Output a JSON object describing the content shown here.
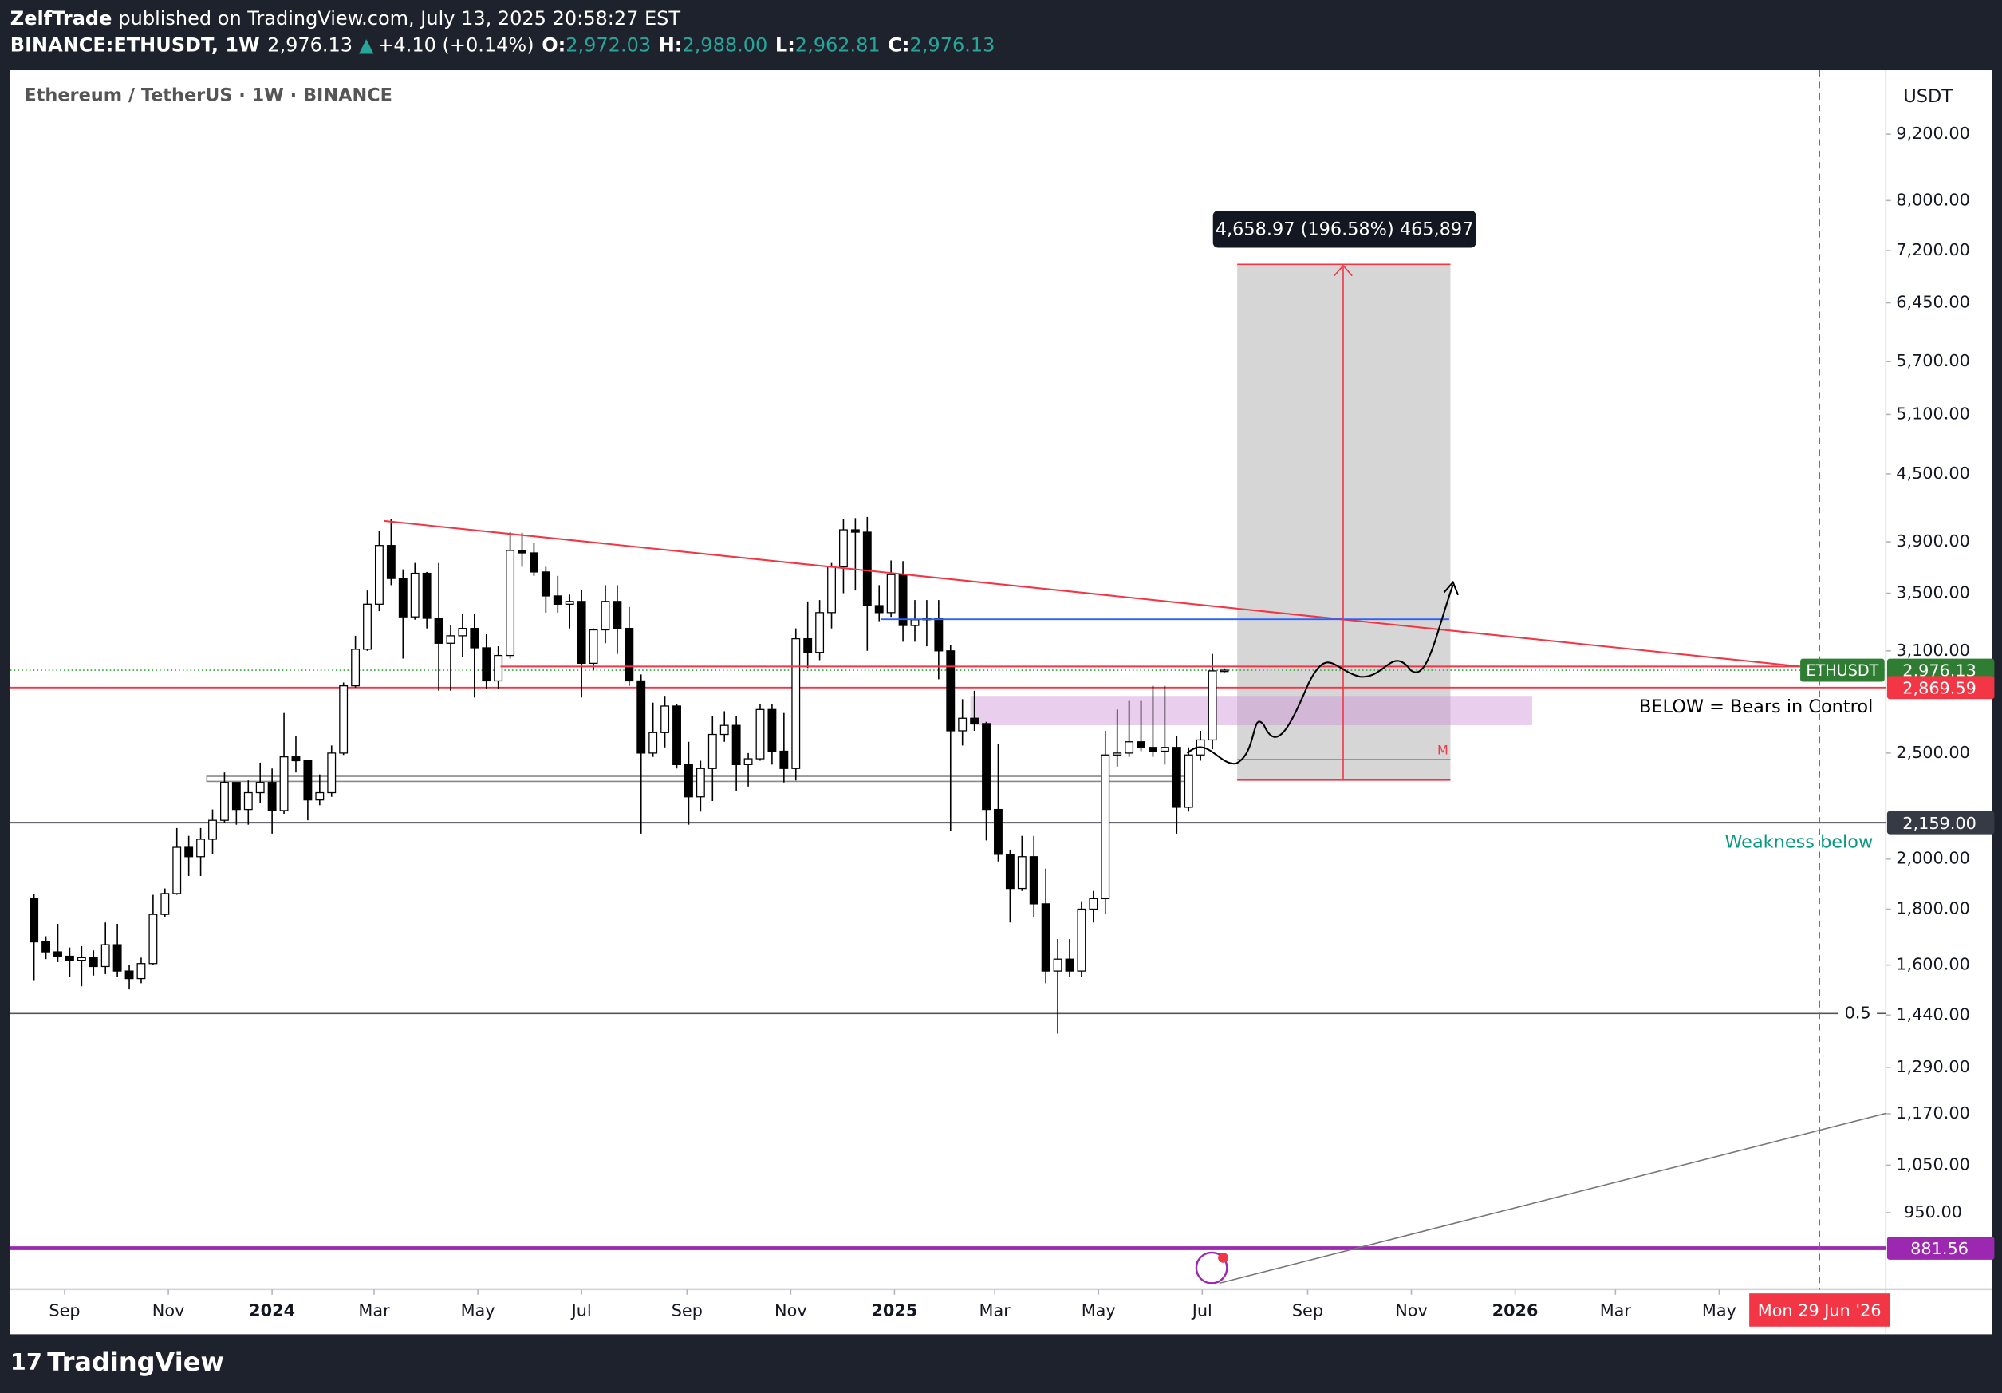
{
  "header": {
    "author": "ZelfTrade",
    "published": "published on TradingView.com, July 13, 2025 20:58:27 EST",
    "symbol": "BINANCE:ETHUSDT, 1W",
    "last": "2,976.13",
    "arrow": "▲",
    "change": "+4.10 (+0.14%)",
    "o_label": "O:",
    "o": "2,972.03",
    "h_label": "H:",
    "h": "2,988.00",
    "l_label": "L:",
    "l": "2,962.81",
    "c_label": "C:",
    "c": "2,976.13"
  },
  "footer": "TradingView",
  "chart_data": {
    "type": "candlestick",
    "title": "Ethereum / TetherUS · 1W · BINANCE",
    "currency": "USDT",
    "log_scale": true,
    "colors": {
      "up": "#ffffff",
      "down": "#000000",
      "border": "#000000"
    },
    "x": [
      "2023-08-14",
      "2023-08-21",
      "2023-08-28",
      "2023-09-04",
      "2023-09-11",
      "2023-09-18",
      "2023-09-25",
      "2023-10-02",
      "2023-10-09",
      "2023-10-16",
      "2023-10-23",
      "2023-10-30",
      "2023-11-06",
      "2023-11-13",
      "2023-11-20",
      "2023-11-27",
      "2023-12-04",
      "2023-12-11",
      "2023-12-18",
      "2023-12-25",
      "2024-01-01",
      "2024-01-08",
      "2024-01-15",
      "2024-01-22",
      "2024-01-29",
      "2024-02-05",
      "2024-02-12",
      "2024-02-19",
      "2024-02-26",
      "2024-03-04",
      "2024-03-11",
      "2024-03-18",
      "2024-03-25",
      "2024-04-01",
      "2024-04-08",
      "2024-04-15",
      "2024-04-22",
      "2024-04-29",
      "2024-05-06",
      "2024-05-13",
      "2024-05-20",
      "2024-05-27",
      "2024-06-03",
      "2024-06-10",
      "2024-06-17",
      "2024-06-24",
      "2024-07-01",
      "2024-07-08",
      "2024-07-15",
      "2024-07-22",
      "2024-07-29",
      "2024-08-05",
      "2024-08-12",
      "2024-08-19",
      "2024-08-26",
      "2024-09-02",
      "2024-09-09",
      "2024-09-16",
      "2024-09-23",
      "2024-09-30",
      "2024-10-07",
      "2024-10-14",
      "2024-10-21",
      "2024-10-28",
      "2024-11-04",
      "2024-11-11",
      "2024-11-18",
      "2024-11-25",
      "2024-12-02",
      "2024-12-09",
      "2024-12-16",
      "2024-12-23",
      "2024-12-30",
      "2025-01-06",
      "2025-01-13",
      "2025-01-20",
      "2025-01-27",
      "2025-02-03",
      "2025-02-10",
      "2025-02-17",
      "2025-02-24",
      "2025-03-03",
      "2025-03-10",
      "2025-03-17",
      "2025-03-24",
      "2025-03-31",
      "2025-04-07",
      "2025-04-14",
      "2025-04-21",
      "2025-04-28",
      "2025-05-05",
      "2025-05-12",
      "2025-05-19",
      "2025-05-26",
      "2025-06-02",
      "2025-06-09",
      "2025-06-16",
      "2025-06-23",
      "2025-06-30",
      "2025-07-07",
      "2025-07-14"
    ],
    "open": [
      1840,
      1680,
      1645,
      1630,
      1616,
      1625,
      1595,
      1670,
      1580,
      1555,
      1605,
      1780,
      1860,
      2050,
      2010,
      2085,
      2170,
      2350,
      2220,
      2300,
      2350,
      2215,
      2480,
      2460,
      2265,
      2300,
      2500,
      2880,
      3110,
      3420,
      3870,
      3610,
      3330,
      3650,
      3320,
      3150,
      3200,
      3250,
      3120,
      2910,
      3070,
      3830,
      3810,
      3660,
      3480,
      3420,
      3440,
      3020,
      3240,
      3440,
      3250,
      2910,
      2500,
      2610,
      2760,
      2440,
      2280,
      2420,
      2600,
      2650,
      2440,
      2470,
      2740,
      2510,
      2420,
      3180,
      3090,
      3360,
      3700,
      4000,
      3980,
      3410,
      3360,
      3640,
      3270,
      3310,
      3320,
      3100,
      2620,
      2690,
      2660,
      2220,
      2020,
      1880,
      2010,
      1820,
      1580,
      1620,
      1580,
      1800,
      1840,
      2490,
      2500,
      2560,
      2530,
      2510,
      2530,
      2230,
      2490,
      2570,
      2972.03
    ],
    "high": [
      1860,
      1700,
      1745,
      1660,
      1665,
      1650,
      1750,
      1745,
      1600,
      1625,
      1855,
      1880,
      2135,
      2100,
      2135,
      2220,
      2400,
      2350,
      2360,
      2450,
      2420,
      2720,
      2590,
      2460,
      2390,
      2540,
      2900,
      3200,
      3520,
      3990,
      4090,
      3680,
      3730,
      3660,
      3730,
      3270,
      3350,
      3350,
      3210,
      3130,
      3980,
      3975,
      3890,
      3700,
      3630,
      3490,
      3525,
      3250,
      3560,
      3560,
      3400,
      2950,
      2780,
      2820,
      2770,
      2560,
      2460,
      2700,
      2730,
      2700,
      2500,
      2770,
      2770,
      2720,
      3250,
      3440,
      3450,
      3730,
      4090,
      4100,
      4110,
      3560,
      3750,
      3745,
      3450,
      3450,
      3450,
      3140,
      2800,
      2850,
      2670,
      2550,
      2040,
      2100,
      2100,
      1960,
      1690,
      1690,
      1830,
      1870,
      2620,
      2740,
      2790,
      2790,
      2880,
      2880,
      2590,
      2530,
      2620,
      3080,
      2988
    ],
    "low": [
      1550,
      1620,
      1610,
      1560,
      1530,
      1565,
      1570,
      1560,
      1520,
      1540,
      1600,
      1770,
      1855,
      1930,
      1930,
      2020,
      2160,
      2150,
      2150,
      2250,
      2110,
      2200,
      2400,
      2170,
      2240,
      2280,
      2490,
      2870,
      3100,
      3370,
      3560,
      3050,
      3310,
      3250,
      2850,
      2850,
      3060,
      2810,
      2860,
      2860,
      3050,
      3700,
      3630,
      3360,
      3360,
      3250,
      2810,
      2975,
      3150,
      3080,
      2880,
      2110,
      2480,
      2530,
      2420,
      2150,
      2210,
      2260,
      2560,
      2310,
      2330,
      2460,
      2440,
      2350,
      2360,
      2990,
      3040,
      3250,
      3500,
      3520,
      3100,
      3300,
      3330,
      3160,
      3160,
      3130,
      2920,
      2120,
      2540,
      2620,
      2080,
      1990,
      1750,
      1870,
      1770,
      1540,
      1385,
      1560,
      1560,
      1750,
      1780,
      2430,
      2480,
      2510,
      2480,
      2440,
      2110,
      2210,
      2460,
      2520,
      2962.81
    ],
    "close": [
      1680,
      1645,
      1630,
      1616,
      1625,
      1595,
      1670,
      1580,
      1555,
      1605,
      1780,
      1860,
      2050,
      2010,
      2085,
      2170,
      2350,
      2220,
      2300,
      2350,
      2215,
      2480,
      2460,
      2265,
      2300,
      2500,
      2880,
      3110,
      3420,
      3870,
      3610,
      3330,
      3650,
      3320,
      3150,
      3200,
      3250,
      3120,
      2910,
      3070,
      3830,
      3810,
      3660,
      3480,
      3420,
      3440,
      3020,
      3240,
      3440,
      3250,
      2910,
      2500,
      2610,
      2760,
      2440,
      2280,
      2420,
      2600,
      2650,
      2440,
      2470,
      2740,
      2510,
      2420,
      3180,
      3090,
      3360,
      3700,
      4000,
      3980,
      3410,
      3360,
      3640,
      3270,
      3310,
      3320,
      3100,
      2620,
      2690,
      2660,
      2220,
      2020,
      1880,
      2010,
      1820,
      1580,
      1620,
      1580,
      1800,
      1840,
      2490,
      2500,
      2560,
      2530,
      2510,
      2530,
      2230,
      2490,
      2570,
      2972.03,
      2976.13
    ],
    "xlim": [
      "2023-07-31",
      "2026-08-07"
    ],
    "xticks": [
      {
        "value": "2023-09",
        "label": "Sep"
      },
      {
        "value": "2023-11",
        "label": "Nov"
      },
      {
        "value": "2024-01",
        "label": "2024"
      },
      {
        "value": "2024-03",
        "label": "Mar"
      },
      {
        "value": "2024-05",
        "label": "May"
      },
      {
        "value": "2024-07",
        "label": "Jul"
      },
      {
        "value": "2024-09",
        "label": "Sep"
      },
      {
        "value": "2024-11",
        "label": "Nov"
      },
      {
        "value": "2025-01",
        "label": "2025"
      },
      {
        "value": "2025-03",
        "label": "Mar"
      },
      {
        "value": "2025-05",
        "label": "May"
      },
      {
        "value": "2025-07",
        "label": "Jul"
      },
      {
        "value": "2025-09",
        "label": "Sep"
      },
      {
        "value": "2025-11",
        "label": "Nov"
      },
      {
        "value": "2026-01",
        "label": "2026"
      },
      {
        "value": "2026-03",
        "label": "Mar"
      },
      {
        "value": "2026-05",
        "label": "May"
      }
    ],
    "ylim": [
      808,
      10525
    ],
    "yticks": [
      {
        "value": 9200,
        "label": "9,200.00"
      },
      {
        "value": 8000,
        "label": "8,000.00"
      },
      {
        "value": 7200,
        "label": "7,200.00"
      },
      {
        "value": 6450,
        "label": "6,450.00"
      },
      {
        "value": 5700,
        "label": "5,700.00"
      },
      {
        "value": 5100,
        "label": "5,100.00"
      },
      {
        "value": 4500,
        "label": "4,500.00"
      },
      {
        "value": 3900,
        "label": "3,900.00"
      },
      {
        "value": 3500,
        "label": "3,500.00"
      },
      {
        "value": 3100,
        "label": "3,100.00"
      },
      {
        "value": 2500,
        "label": "2,500.00"
      },
      {
        "value": 2000,
        "label": "2,000.00"
      },
      {
        "value": 1800,
        "label": "1,800.00"
      },
      {
        "value": 1600,
        "label": "1,600.00"
      },
      {
        "value": 1440,
        "label": "1,440.00"
      },
      {
        "value": 1290,
        "label": "1,290.00"
      },
      {
        "value": 1170,
        "label": "1,170.00"
      },
      {
        "value": 1050,
        "label": "1,050.00"
      },
      {
        "value": 950,
        "label": "950.00"
      }
    ],
    "levels": [
      {
        "label": "2,976.13",
        "value": 2976.13,
        "color": "#2e7d32",
        "tag": "ETHUSDT",
        "style": "dotted"
      },
      {
        "label": "2,869.59",
        "value": 2869.59,
        "color": "#f23645",
        "style": "solid"
      },
      {
        "label": "2,159.00",
        "value": 2159,
        "color": "#363a45",
        "style": "solid"
      },
      {
        "label": "881.56",
        "value": 881.56,
        "color": "#9c27b0",
        "style": "thick"
      }
    ],
    "fib": {
      "label": "0.5",
      "value": 1445
    },
    "cursor": {
      "label": "Mon 29 Jun '26",
      "x": "2026-06-29"
    },
    "annotations": {
      "bears": "BELOW = Bears in Control",
      "weakness": "Weakness below",
      "m": "M",
      "projection": "4,658.97 (196.58%) 465,897"
    }
  }
}
